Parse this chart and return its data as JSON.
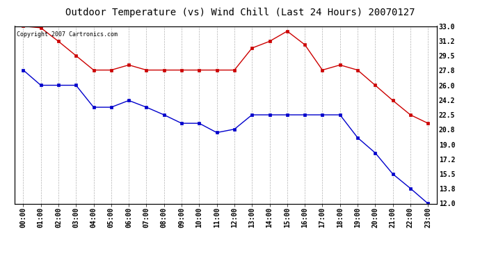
{
  "title": "Outdoor Temperature (vs) Wind Chill (Last 24 Hours) 20070127",
  "copyright_text": "Copyright 2007 Cartronics.com",
  "x_labels": [
    "00:00",
    "01:00",
    "02:00",
    "03:00",
    "04:00",
    "05:00",
    "06:00",
    "07:00",
    "08:00",
    "09:00",
    "10:00",
    "11:00",
    "12:00",
    "13:00",
    "14:00",
    "15:00",
    "16:00",
    "17:00",
    "18:00",
    "19:00",
    "20:00",
    "21:00",
    "22:00",
    "23:00"
  ],
  "y_ticks": [
    12.0,
    13.8,
    15.5,
    17.2,
    19.0,
    20.8,
    22.5,
    24.2,
    26.0,
    27.8,
    29.5,
    31.2,
    33.0
  ],
  "y_min": 12.0,
  "y_max": 33.0,
  "red_line": [
    33.0,
    32.8,
    31.2,
    29.5,
    27.8,
    27.8,
    28.4,
    27.8,
    27.8,
    27.8,
    27.8,
    27.8,
    27.8,
    30.4,
    31.2,
    32.4,
    30.8,
    27.8,
    28.4,
    27.8,
    26.0,
    24.2,
    22.5,
    21.5
  ],
  "blue_line": [
    27.8,
    26.0,
    26.0,
    26.0,
    23.4,
    23.4,
    24.2,
    23.4,
    22.5,
    21.5,
    21.5,
    20.4,
    20.8,
    22.5,
    22.5,
    22.5,
    22.5,
    22.5,
    22.5,
    19.8,
    18.0,
    15.5,
    13.8,
    12.0
  ],
  "red_color": "#cc0000",
  "blue_color": "#0000cc",
  "grid_color": "#aaaaaa",
  "bg_color": "#ffffff",
  "plot_bg_color": "#ffffff",
  "title_fontsize": 10,
  "tick_fontsize": 7,
  "copyright_fontsize": 6
}
